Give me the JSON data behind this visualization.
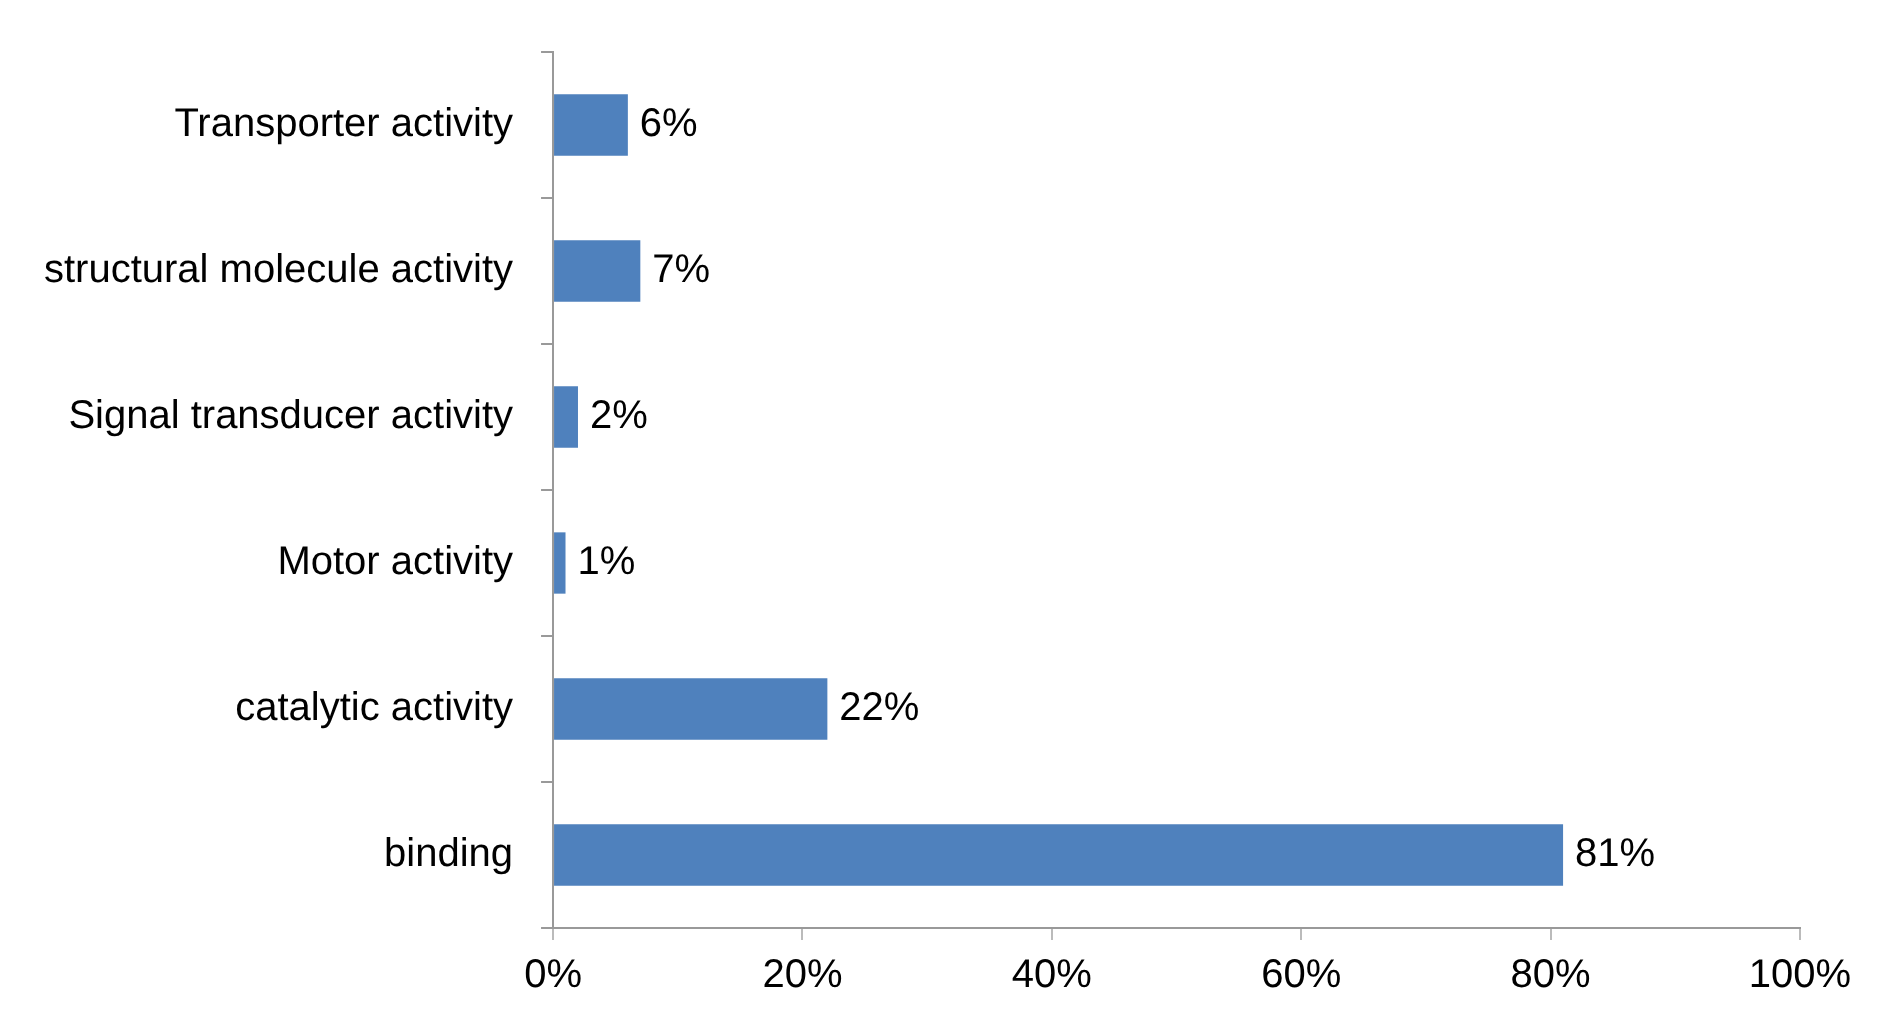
{
  "chart_data": {
    "type": "bar",
    "orientation": "horizontal",
    "categories": [
      "Transporter activity",
      "structural molecule activity",
      "Signal transducer activity",
      "Motor activity",
      "catalytic activity",
      "binding"
    ],
    "values": [
      6,
      7,
      2,
      1,
      22,
      81
    ],
    "value_labels": [
      "6%",
      "7%",
      "2%",
      "1%",
      "22%",
      "81%"
    ],
    "color": "#4f81bd",
    "xlim": [
      0,
      100
    ],
    "xticks": [
      {
        "value": 0,
        "label": "0%"
      },
      {
        "value": 20,
        "label": "20%"
      },
      {
        "value": 40,
        "label": "40%"
      },
      {
        "value": 60,
        "label": "60%"
      },
      {
        "value": 80,
        "label": "80%"
      },
      {
        "value": 100,
        "label": "100%"
      }
    ],
    "grid": false,
    "legend": false
  }
}
